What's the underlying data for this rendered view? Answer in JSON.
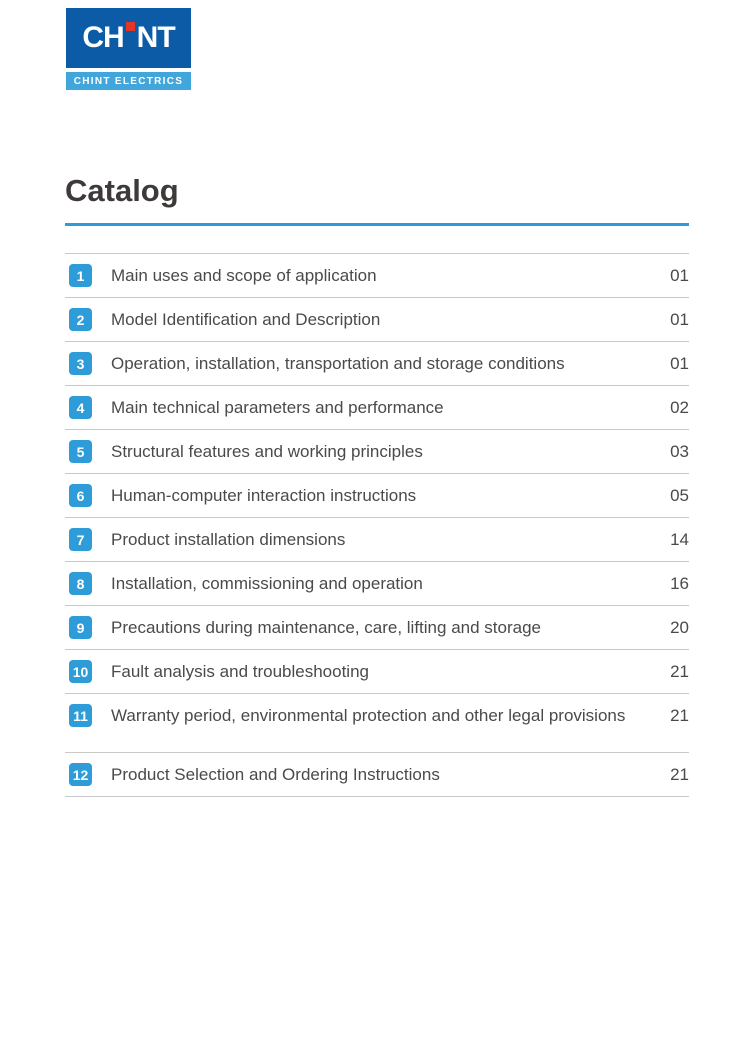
{
  "logo": {
    "brand_left": "CH",
    "brand_right": "NT",
    "tagline": "CHINT ELECTRICS",
    "colors": {
      "dark_blue": "#0B5BA7",
      "light_blue": "#41A6DB",
      "red_dot": "#E2362A"
    }
  },
  "page_title": "Catalog",
  "accent_color": "#2D9CD8",
  "toc": {
    "items": [
      {
        "number": "1",
        "title": "Main uses and scope of application",
        "page": "01"
      },
      {
        "number": "2",
        "title": "Model Identification and Description",
        "page": "01"
      },
      {
        "number": "3",
        "title": "Operation, installation, transportation and storage conditions",
        "page": "01"
      },
      {
        "number": "4",
        "title": "Main technical parameters and performance",
        "page": "02"
      },
      {
        "number": "5",
        "title": "Structural features and working principles",
        "page": "03"
      },
      {
        "number": "6",
        "title": "Human-computer interaction instructions",
        "page": "05"
      },
      {
        "number": "7",
        "title": "Product installation dimensions",
        "page": "14"
      },
      {
        "number": "8",
        "title": "Installation, commissioning and operation",
        "page": "16"
      },
      {
        "number": "9",
        "title": "Precautions during maintenance, care, lifting and storage",
        "page": "20"
      },
      {
        "number": "10",
        "title": "Fault analysis and troubleshooting",
        "page": "21"
      },
      {
        "number": "11",
        "title": "Warranty period, environmental protection and other legal provisions",
        "page": "21"
      },
      {
        "number": "12",
        "title": "Product Selection and Ordering Instructions",
        "page": "21"
      }
    ]
  }
}
